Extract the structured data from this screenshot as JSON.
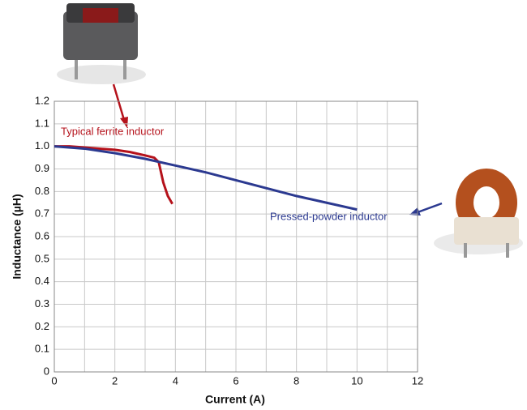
{
  "chart_data": {
    "type": "line",
    "xlabel": "Current (A)",
    "ylabel": "Inductance (µH)",
    "xlim": [
      0,
      12
    ],
    "xticks": [
      0,
      2,
      4,
      6,
      8,
      10,
      12
    ],
    "ylim": [
      0,
      1.2
    ],
    "yticks": [
      0,
      0.1,
      0.2,
      0.3,
      0.4,
      0.5,
      0.6,
      0.7,
      0.8,
      0.9,
      {
        "value": 1,
        "label": "1.0"
      },
      1.1,
      1.2
    ],
    "grid": true,
    "series": [
      {
        "name": "Typical ferrite inductor",
        "color": "#b5121b",
        "x": [
          0,
          0.5,
          1,
          1.5,
          2,
          2.5,
          3,
          3.3,
          3.45,
          3.5,
          3.6,
          3.75,
          3.9
        ],
        "values": [
          1.0,
          1.0,
          0.995,
          0.99,
          0.985,
          0.975,
          0.96,
          0.95,
          0.93,
          0.9,
          0.84,
          0.78,
          0.745
        ]
      },
      {
        "name": "Pressed-powder inductor",
        "color": "#2b3990",
        "x": [
          0,
          1,
          2,
          3,
          4,
          5,
          6,
          7,
          8,
          9,
          10
        ],
        "values": [
          1.0,
          0.99,
          0.97,
          0.945,
          0.915,
          0.885,
          0.85,
          0.815,
          0.78,
          0.75,
          0.72
        ]
      }
    ]
  }
}
